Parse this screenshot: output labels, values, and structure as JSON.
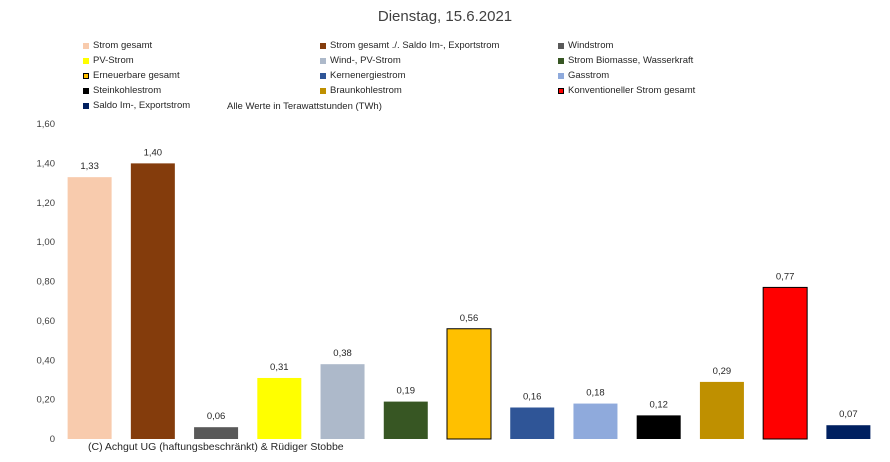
{
  "chart_data": {
    "type": "bar",
    "title": "Dienstag, 15.6.2021",
    "subtitle": "Alle Werte in Terawattstunden (TWh)",
    "ylim": [
      0,
      1.6
    ],
    "yticks": [
      0,
      0.2,
      0.4,
      0.6,
      0.8,
      1.0,
      1.2,
      1.4,
      1.6
    ],
    "ytick_labels": [
      "0",
      "0,20",
      "0,40",
      "0,60",
      "0,80",
      "1,00",
      "1,20",
      "1,40",
      "1,60"
    ],
    "grid": false,
    "legend_position": "top",
    "categories": [
      "Strom gesamt",
      "Strom gesamt ./. Saldo Im-, Exportstrom",
      "Windstrom",
      "PV-Strom",
      "Wind-, PV-Strom",
      "Strom Biomasse, Wasserkraft",
      "Erneuerbare gesamt",
      "Kernenergiestrom",
      "Gasstrom",
      "Steinkohlestrom",
      "Braunkohlestrom",
      "Konventioneller Strom gesamt",
      "Saldo Im-, Exportstrom"
    ],
    "values": [
      1.33,
      1.4,
      0.06,
      0.31,
      0.38,
      0.19,
      0.56,
      0.16,
      0.18,
      0.12,
      0.29,
      0.77,
      0.07
    ],
    "value_labels": [
      "1,33",
      "1,40",
      "0,06",
      "0,31",
      "0,38",
      "0,19",
      "0,56",
      "0,16",
      "0,18",
      "0,12",
      "0,29",
      "0,77",
      "0,07"
    ],
    "colors": [
      "#F8CBAD",
      "#843C0C",
      "#595959",
      "#FFFF00",
      "#ADB9CA",
      "#375623",
      "#FFC000",
      "#2F5597",
      "#8FAADC",
      "#000000",
      "#BF9000",
      "#FF0000",
      "#002060"
    ],
    "outlined": [
      false,
      false,
      false,
      false,
      false,
      false,
      true,
      false,
      false,
      false,
      false,
      true,
      false
    ]
  },
  "footer": "(C) Achgut UG (haftungsbeschränkt) & Rüdiger Stobbe"
}
